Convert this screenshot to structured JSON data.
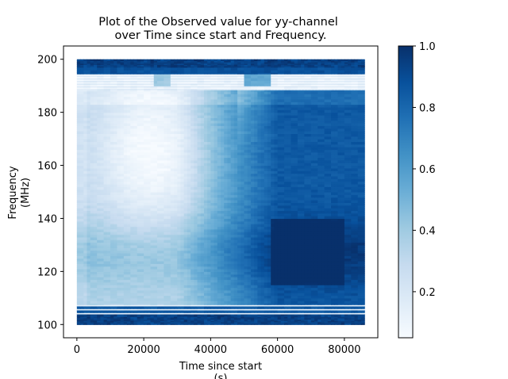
{
  "chart_data": {
    "type": "heatmap",
    "title": [
      "Plot of the Observed value for yy-channel",
      "over Time since start and Frequency."
    ],
    "xlabel": [
      "Time since start",
      "(s)"
    ],
    "ylabel": [
      "Frequency",
      "(MHz)"
    ],
    "colormap": "Blues",
    "colors": {
      "low": "#f7fbff",
      "high": "#08306b"
    },
    "x_range": [
      0,
      86000
    ],
    "y_range": [
      100,
      200
    ],
    "xlim": [
      -4000,
      90000
    ],
    "ylim": [
      95,
      205
    ],
    "x_ticks": [
      0,
      20000,
      40000,
      60000,
      80000
    ],
    "x_tick_labels": [
      "0",
      "20000",
      "40000",
      "60000",
      "80000"
    ],
    "y_ticks": [
      100,
      120,
      140,
      160,
      180,
      200
    ],
    "y_tick_labels": [
      "100",
      "120",
      "140",
      "160",
      "180",
      "200"
    ],
    "colorbar": {
      "range": [
        0.05,
        1.0
      ],
      "ticks": [
        0.2,
        0.4,
        0.6,
        0.8,
        1.0
      ],
      "tick_labels": [
        "0.2",
        "0.4",
        "0.6",
        "0.8",
        "1.0"
      ]
    },
    "grid": false
  }
}
